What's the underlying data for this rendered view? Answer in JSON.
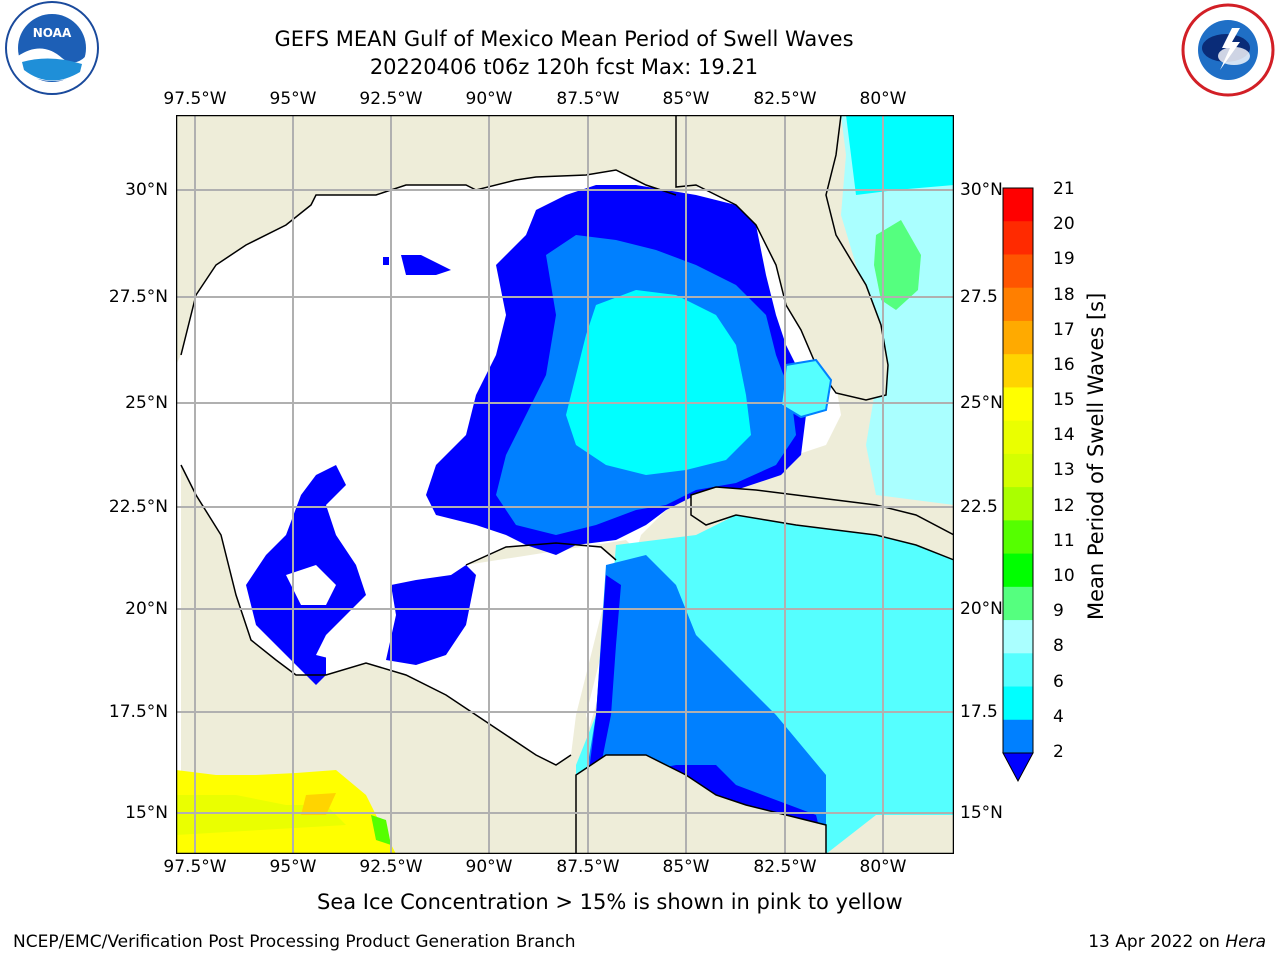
{
  "title": {
    "line1": "GEFS MEAN Gulf of Mexico Mean Period of Swell Waves",
    "line2": "20220406 t06z 120h fcst   Max: 19.21"
  },
  "lon_ticks": [
    "97.5°W",
    "95°W",
    "92.5°W",
    "90°W",
    "87.5°W",
    "85°W",
    "82.5°W",
    "80°W"
  ],
  "lat_ticks_left": [
    "30°N",
    "27.5°N",
    "25°N",
    "22.5°N",
    "20°N",
    "17.5°N",
    "15°N"
  ],
  "lat_ticks_right": [
    "30°N",
    "27.5",
    "25°N",
    "22.5",
    "20°N",
    "17.5",
    "15°N"
  ],
  "colorbar": {
    "label": "Mean Period of Swell Waves [s]",
    "ticks": [
      "21",
      "20",
      "19",
      "18",
      "17",
      "16",
      "15",
      "14",
      "13",
      "12",
      "11",
      "10",
      "9",
      "8",
      "6",
      "4",
      "2"
    ],
    "colors": [
      "#ff0000",
      "#ff2a00",
      "#ff5500",
      "#ff7f00",
      "#ffaa00",
      "#ffd400",
      "#ffff00",
      "#eaff00",
      "#d4ff00",
      "#aaff00",
      "#55ff00",
      "#00ff00",
      "#55ff7f",
      "#aaffff",
      "#55ffff",
      "#00ffff",
      "#0080ff"
    ],
    "extend_color": "#0000ff"
  },
  "legend_colors": {
    "land": "#eeedd9",
    "ocean_no_data": "#ffffff",
    "low_period": "#0000ff",
    "mid_period": "#0080ff",
    "high_period": "#00ffff"
  },
  "note": "Sea Ice Concentration > 15% is shown in pink to yellow",
  "footer": {
    "left": "NCEP/EMC/Verification Post Processing Product Generation Branch",
    "date": "13 Apr 2022 on ",
    "machine": "Hera"
  },
  "logos": {
    "left": "NOAA",
    "right": "NATIONAL WEATHER SERVICE"
  }
}
